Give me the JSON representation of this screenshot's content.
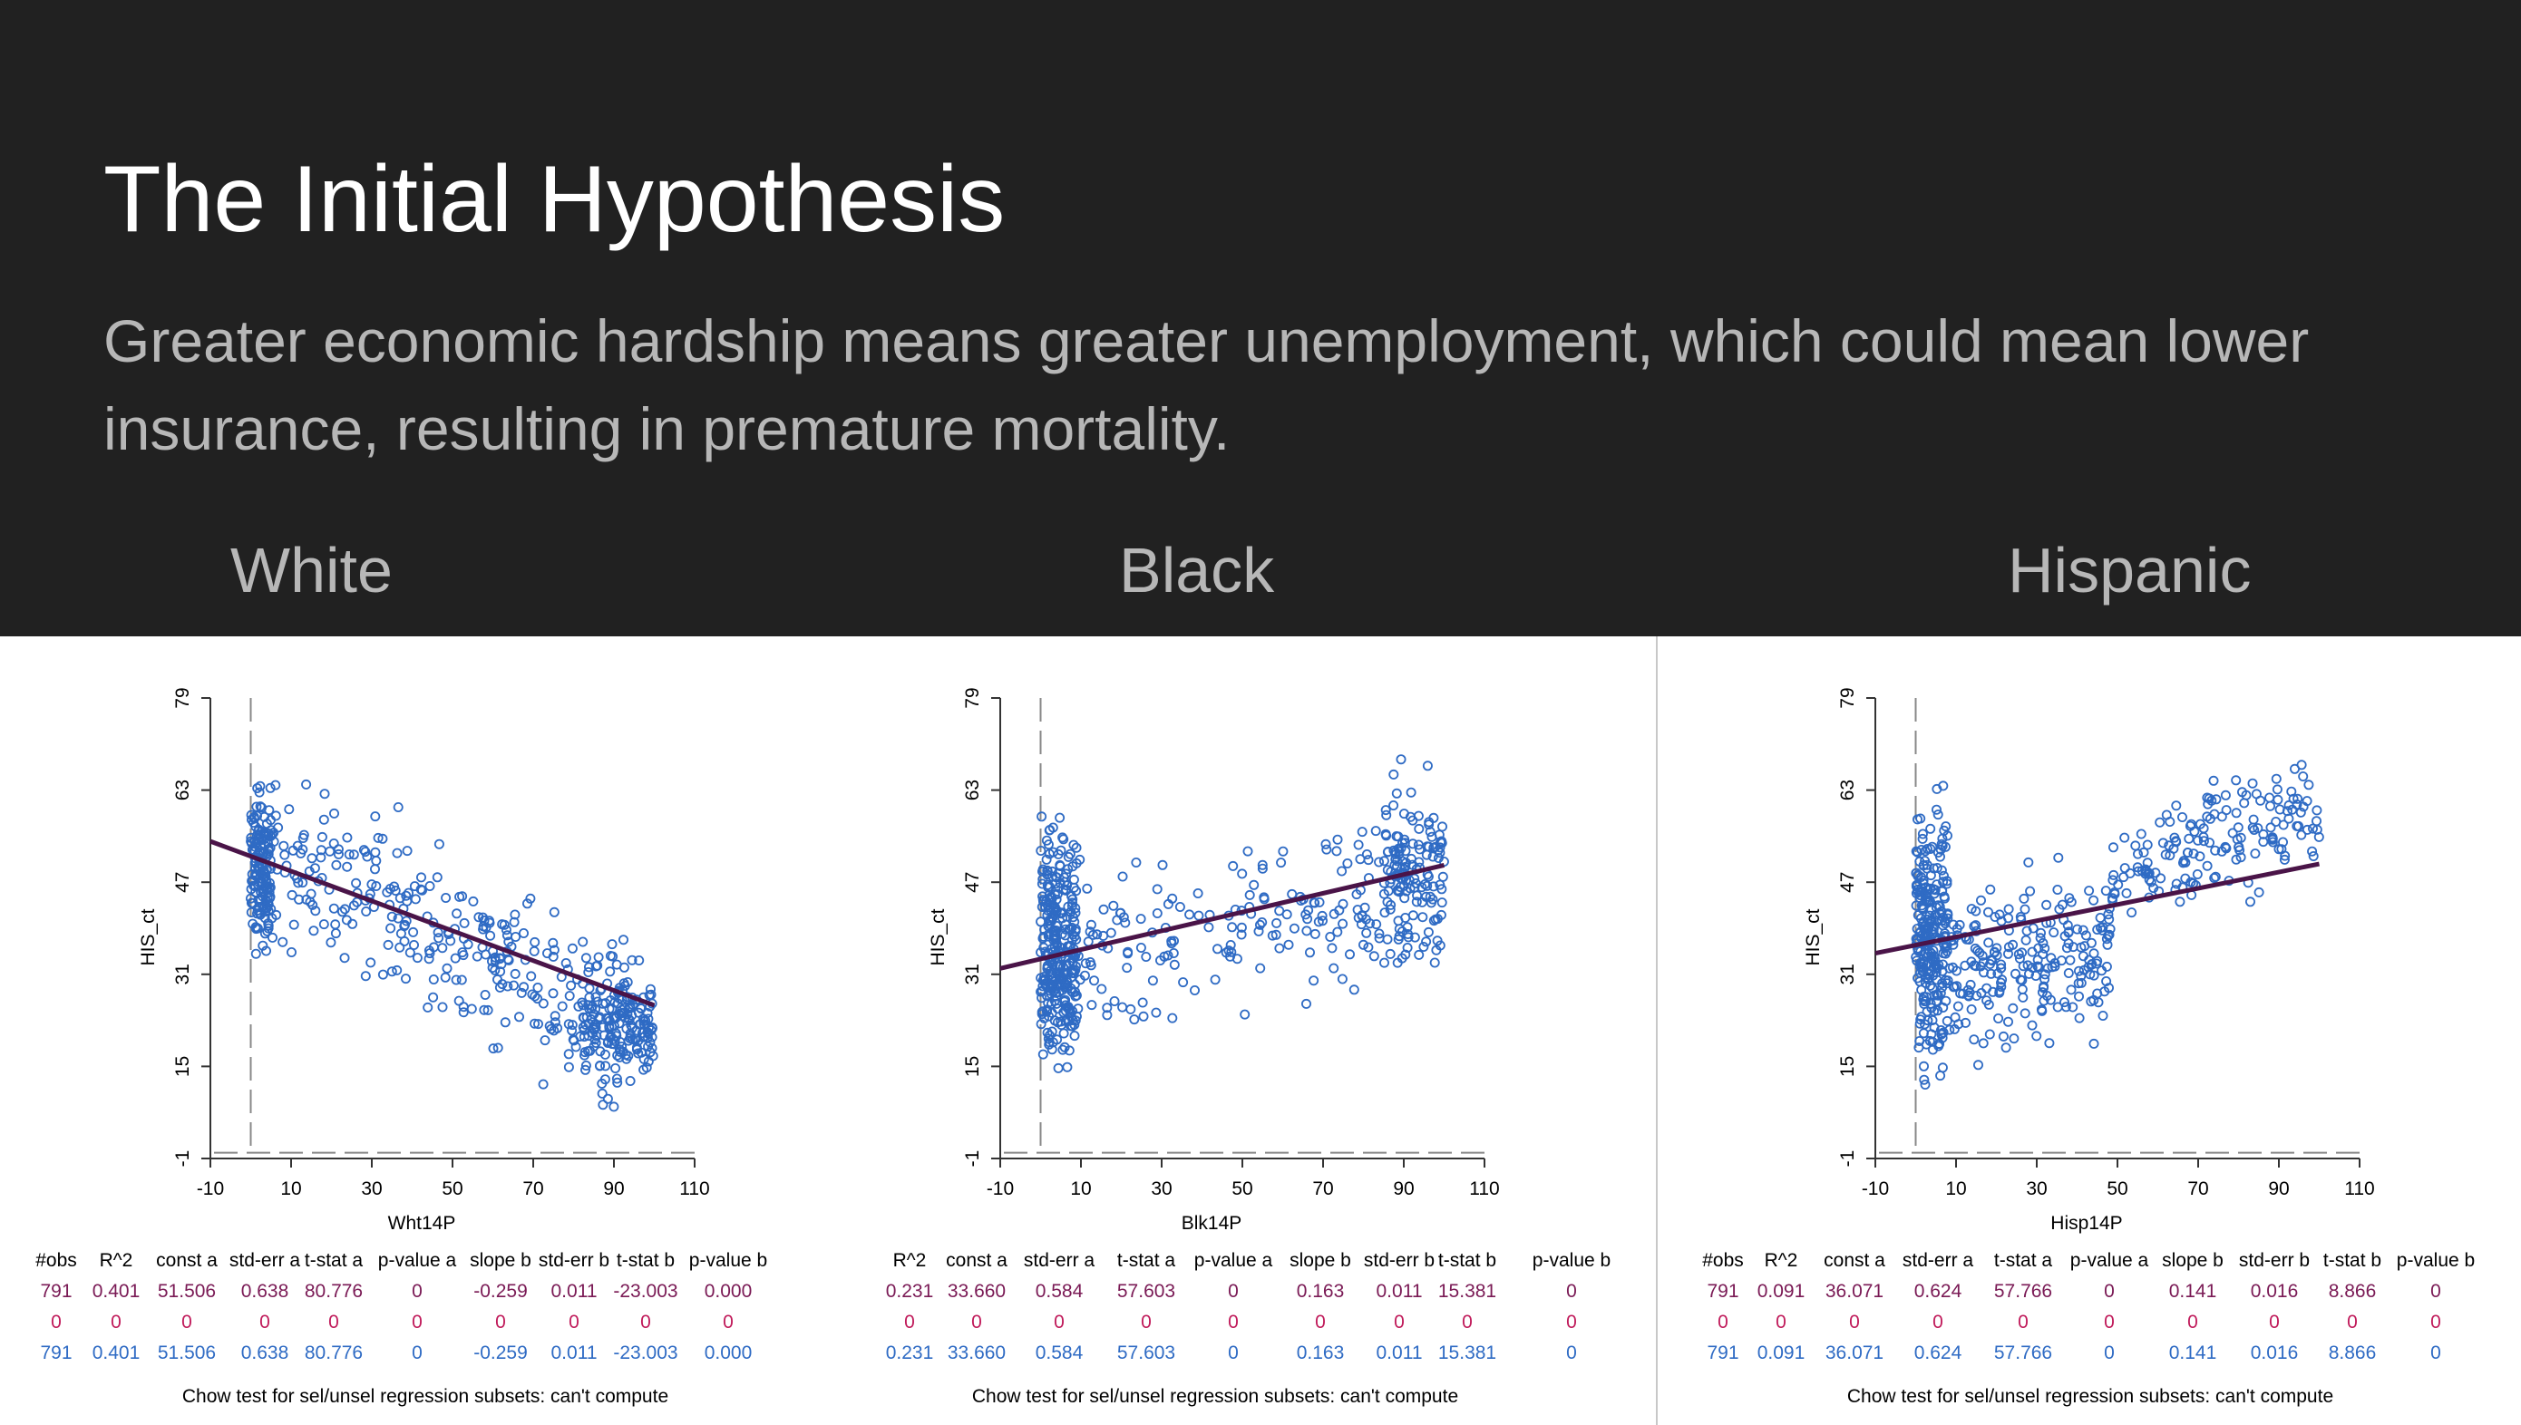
{
  "slide": {
    "title": "The Initial Hypothesis",
    "subtitle": "Greater economic hardship means greater unemployment, which could mean lower insurance, resulting in premature mortality.",
    "labels": [
      "White",
      "Black",
      "Hispanic"
    ]
  },
  "colors": {
    "points": "#2f6bc4",
    "line": "#4a1448",
    "row1": "#7a1a55",
    "row2": "#c01a5a",
    "row3": "#2f6bc4"
  },
  "table_headers": [
    "#obs",
    "R^2",
    "const a",
    "std-err a",
    "t-stat a",
    "p-value a",
    "slope b",
    "std-err b",
    "t-stat b",
    "p-value b"
  ],
  "chart_data": [
    {
      "type": "scatter",
      "xlabel": "Wht14P",
      "ylabel": "HIS_ct",
      "xlim": [
        -10,
        110
      ],
      "ylim": [
        -1,
        79
      ],
      "xticks": [
        "-10",
        "10",
        "30",
        "50",
        "70",
        "90",
        "110"
      ],
      "yticks": [
        "-1",
        "15",
        "31",
        "47",
        "63",
        "79"
      ],
      "intercept": 51.506,
      "slope": -0.259,
      "fit_x": [
        0,
        100
      ],
      "cloud": "negative",
      "table_rows": [
        [
          "791",
          "0.401",
          "51.506",
          "0.638",
          "80.776",
          "0",
          "-0.259",
          "0.011",
          "-23.003",
          "0.000"
        ],
        [
          "0",
          "0",
          "0",
          "0",
          "0",
          "0",
          "0",
          "0",
          "0",
          "0"
        ],
        [
          "791",
          "0.401",
          "51.506",
          "0.638",
          "80.776",
          "0",
          "-0.259",
          "0.011",
          "-23.003",
          "0.000"
        ]
      ],
      "chow": "Chow test for sel/unsel regression subsets: can't compute"
    },
    {
      "type": "scatter",
      "xlabel": "Blk14P",
      "ylabel": "HIS_ct",
      "xlim": [
        -10,
        110
      ],
      "ylim": [
        -1,
        79
      ],
      "xticks": [
        "-10",
        "10",
        "30",
        "50",
        "70",
        "90",
        "110"
      ],
      "yticks": [
        "-1",
        "15",
        "31",
        "47",
        "63",
        "79"
      ],
      "intercept": 33.66,
      "slope": 0.163,
      "fit_x": [
        0,
        100
      ],
      "cloud": "positive",
      "table_rows": [
        [
          "",
          "0.231",
          "33.660",
          "0.584",
          "57.603",
          "0",
          "0.163",
          "0.011",
          "15.381",
          "0"
        ],
        [
          "",
          "0",
          "0",
          "0",
          "0",
          "0",
          "0",
          "0",
          "0",
          "0"
        ],
        [
          "",
          "0.231",
          "33.660",
          "0.584",
          "57.603",
          "0",
          "0.163",
          "0.011",
          "15.381",
          "0"
        ]
      ],
      "chow": "Chow test for sel/unsel regression subsets: can't compute"
    },
    {
      "type": "scatter",
      "xlabel": "Hisp14P",
      "ylabel": "HIS_ct",
      "xlim": [
        -10,
        110
      ],
      "ylim": [
        -1,
        79
      ],
      "xticks": [
        "-10",
        "10",
        "30",
        "50",
        "70",
        "90",
        "110"
      ],
      "yticks": [
        "-1",
        "15",
        "31",
        "47",
        "63",
        "79"
      ],
      "intercept": 36.071,
      "slope": 0.141,
      "fit_x": [
        0,
        100
      ],
      "cloud": "hispanic",
      "table_rows": [
        [
          "791",
          "0.091",
          "36.071",
          "0.624",
          "57.766",
          "0",
          "0.141",
          "0.016",
          "8.866",
          "0"
        ],
        [
          "0",
          "0",
          "0",
          "0",
          "0",
          "0",
          "0",
          "0",
          "0",
          "0"
        ],
        [
          "791",
          "0.091",
          "36.071",
          "0.624",
          "57.766",
          "0",
          "0.141",
          "0.016",
          "8.866",
          "0"
        ]
      ],
      "chow": "Chow test for sel/unsel regression subsets: can't compute"
    }
  ]
}
